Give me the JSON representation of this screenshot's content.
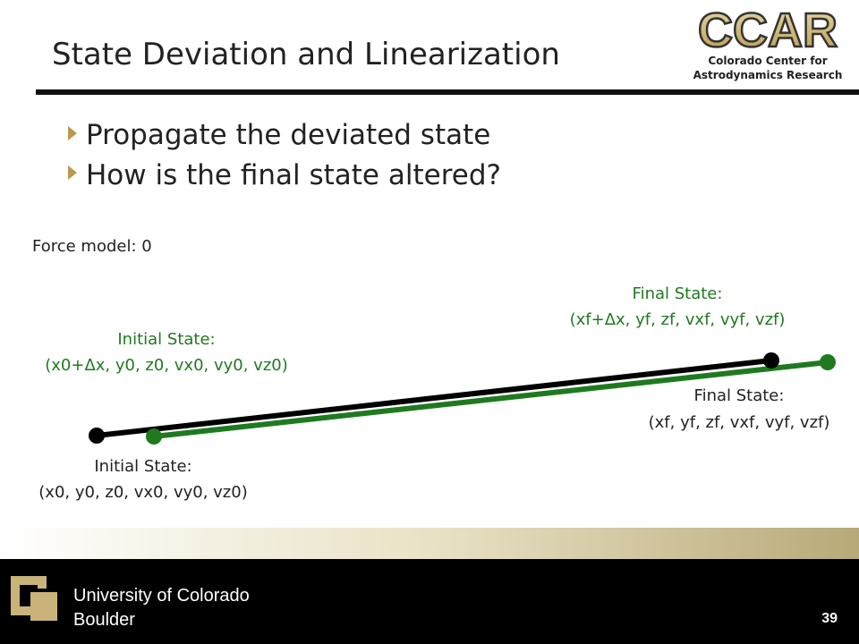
{
  "header": {
    "title": "State Deviation and Linearization",
    "logo": "CCAR",
    "logo_subtitle": [
      "Colorado Center for",
      "Astrodynamics Research"
    ]
  },
  "bullets": [
    "Propagate the deviated state",
    "How is the final state altered?"
  ],
  "diagram": {
    "force_model": "Force model:  0",
    "deviated_initial": {
      "title": "Initial State:",
      "state": "(x0+Δx, y0, z0, vx0, vy0, vz0)"
    },
    "deviated_final": {
      "title": "Final State:",
      "state": "(xf+Δx, yf, zf, vxf, vyf, vzf)"
    },
    "initial": {
      "title": "Initial State:",
      "state": "(x0, y0, z0, vx0, vy0, vz0)"
    },
    "final": {
      "title": "Final State:",
      "state": "(xf, yf, zf, vxf, vyf, vzf)"
    }
  },
  "footer": {
    "university": [
      "University of Colorado",
      "Boulder"
    ],
    "page": "39"
  }
}
